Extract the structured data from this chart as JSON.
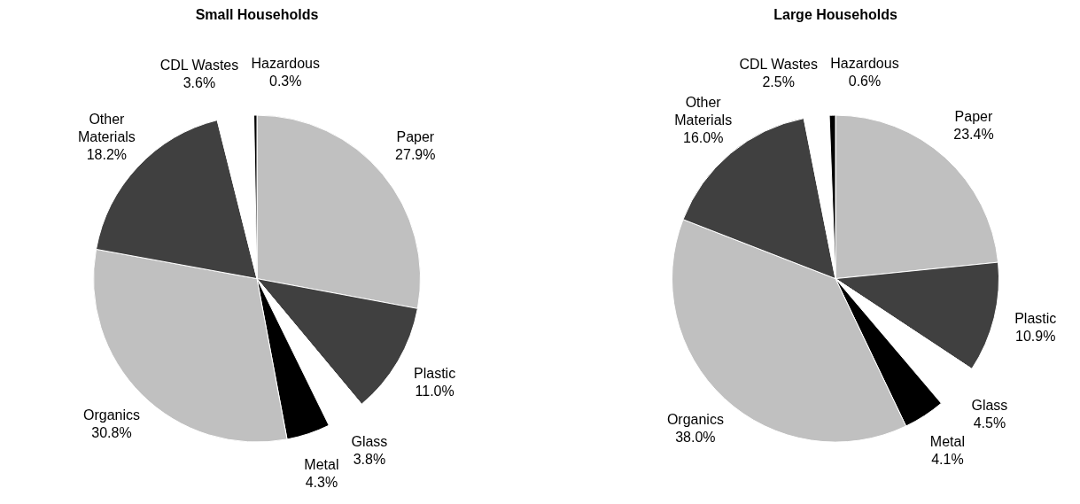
{
  "chart_data": [
    {
      "type": "pie",
      "title": "Small Households",
      "categories": [
        "Paper",
        "Plastic",
        "Glass",
        "Metal",
        "Organics",
        "Other Materials",
        "CDL Wastes",
        "Hazardous"
      ],
      "values": [
        27.9,
        11.0,
        3.8,
        4.3,
        30.8,
        18.2,
        3.6,
        0.3
      ],
      "value_labels": [
        "27.9%",
        "11.0%",
        "3.8%",
        "4.3%",
        "30.8%",
        "18.2%",
        "3.6%",
        "0.3%"
      ],
      "colors": [
        "#c0c0c0",
        "#404040",
        "#ffffff",
        "#000000",
        "#c0c0c0",
        "#404040",
        "#ffffff",
        "#000000"
      ]
    },
    {
      "type": "pie",
      "title": "Large Households",
      "categories": [
        "Paper",
        "Plastic",
        "Glass",
        "Metal",
        "Organics",
        "Other Materials",
        "CDL Wastes",
        "Hazardous"
      ],
      "values": [
        23.4,
        10.9,
        4.5,
        4.1,
        38.0,
        16.0,
        2.5,
        0.6
      ],
      "value_labels": [
        "23.4%",
        "10.9%",
        "4.5%",
        "4.1%",
        "38.0%",
        "16.0%",
        "2.5%",
        "0.6%"
      ],
      "colors": [
        "#c0c0c0",
        "#404040",
        "#ffffff",
        "#000000",
        "#c0c0c0",
        "#404040",
        "#ffffff",
        "#000000"
      ]
    }
  ]
}
